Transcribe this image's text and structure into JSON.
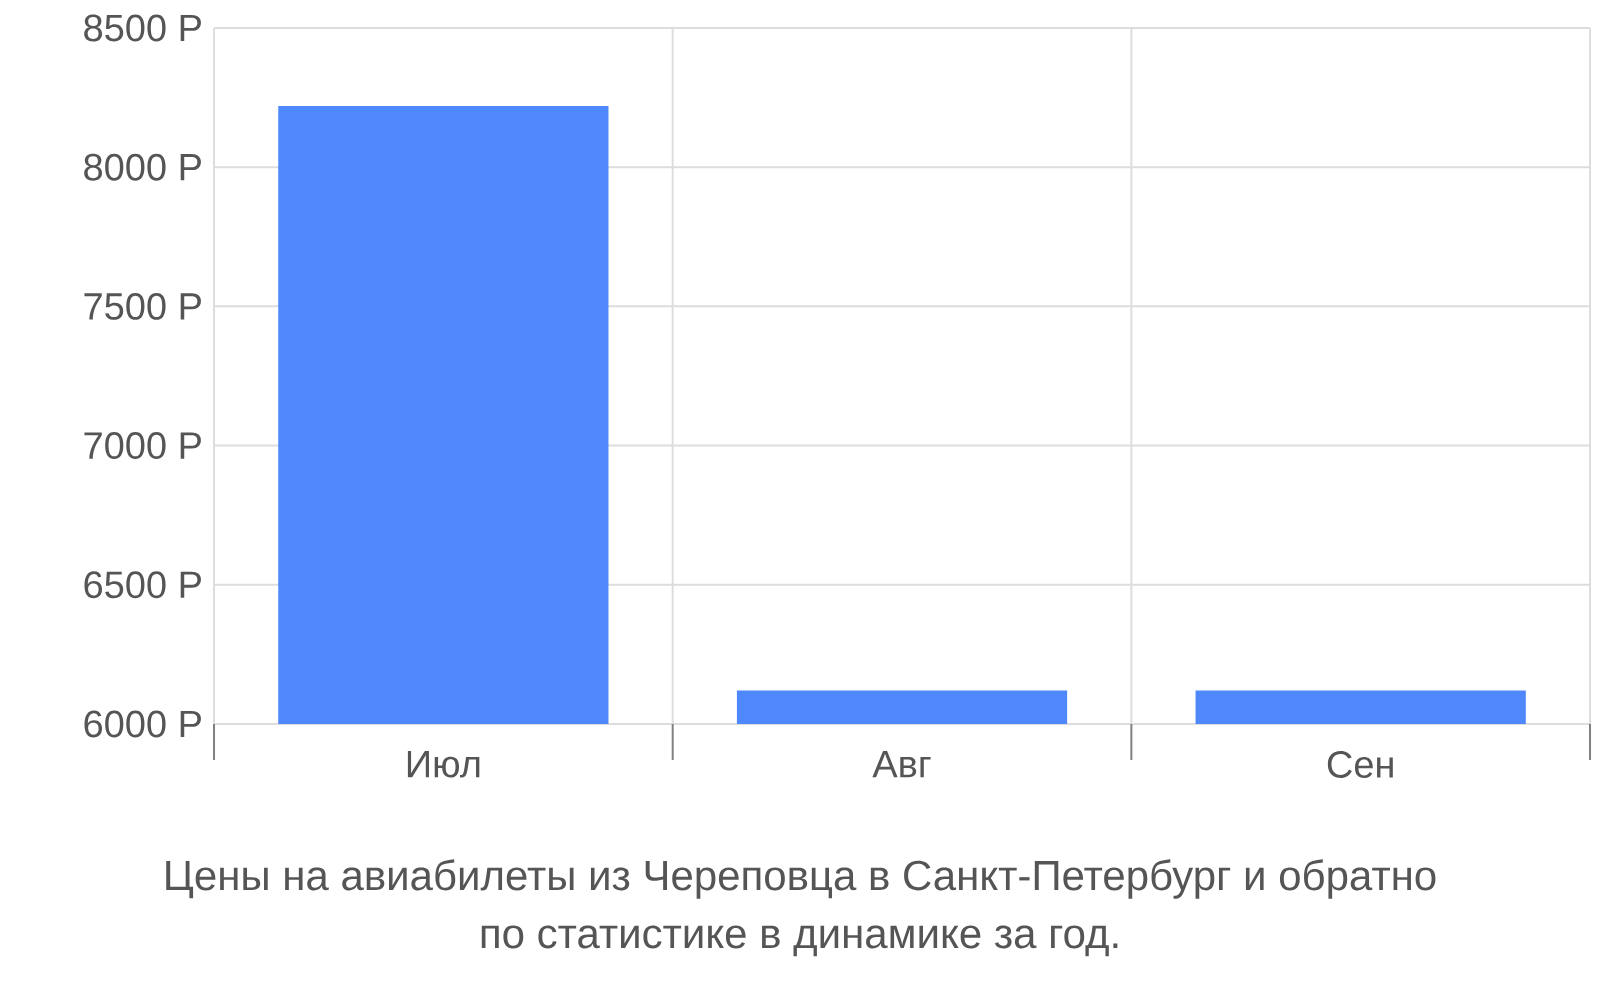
{
  "chart_data": {
    "type": "bar",
    "title": "Цены на авиабилеты из Череповца в Санкт-Петербург и обратно",
    "subtitle": "по статистике в динамике за год.",
    "categories": [
      "Июл",
      "Авг",
      "Сен"
    ],
    "values": [
      8220,
      6120,
      6120
    ],
    "color": "#4f88fb",
    "ylim": [
      6000,
      8500
    ],
    "yticks": [
      {
        "value": 6000,
        "label": "6000 Р"
      },
      {
        "value": 6500,
        "label": "6500 Р"
      },
      {
        "value": 7000,
        "label": "7000 Р"
      },
      {
        "value": 7500,
        "label": "7500 Р"
      },
      {
        "value": 8000,
        "label": "8000 Р"
      },
      {
        "value": 8500,
        "label": "8500 Р"
      }
    ],
    "grid": true
  }
}
